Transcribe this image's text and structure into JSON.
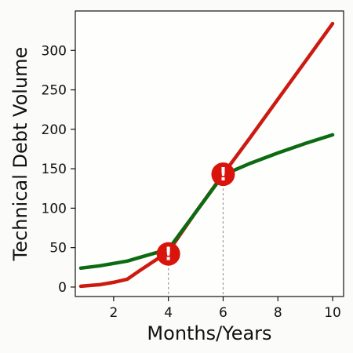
{
  "chart_data": {
    "type": "line",
    "xlabel": "Months/Years",
    "ylabel": "Technical Debt Volume",
    "xlim": [
      0.6,
      10.4
    ],
    "ylim": [
      -12,
      350
    ],
    "xticks": [
      2,
      4,
      6,
      8,
      10
    ],
    "yticks": [
      0,
      50,
      100,
      150,
      200,
      250,
      300
    ],
    "grid": false,
    "series": [
      {
        "color": "#cc1a10",
        "x": [
          0.8,
          1.5,
          2.0,
          2.5,
          3.0,
          4.0,
          5.0,
          6.0,
          7.0,
          8.0,
          9.0,
          10.0
        ],
        "y": [
          1,
          3,
          6,
          10,
          22,
          45,
          95,
          143,
          190,
          238,
          286,
          334
        ]
      },
      {
        "color": "#0c6b12",
        "x": [
          0.8,
          1.5,
          2.0,
          2.5,
          3.0,
          4.0,
          5.0,
          6.0,
          7.0,
          8.0,
          9.0,
          10.0
        ],
        "y": [
          24,
          27,
          30,
          33,
          38,
          48,
          95,
          142,
          157,
          170,
          182,
          193
        ]
      }
    ],
    "warning_markers": [
      {
        "x": 4,
        "y": 42,
        "symbol": "!"
      },
      {
        "x": 6,
        "y": 143,
        "symbol": "!"
      }
    ],
    "marker_color": "#d8140c"
  }
}
